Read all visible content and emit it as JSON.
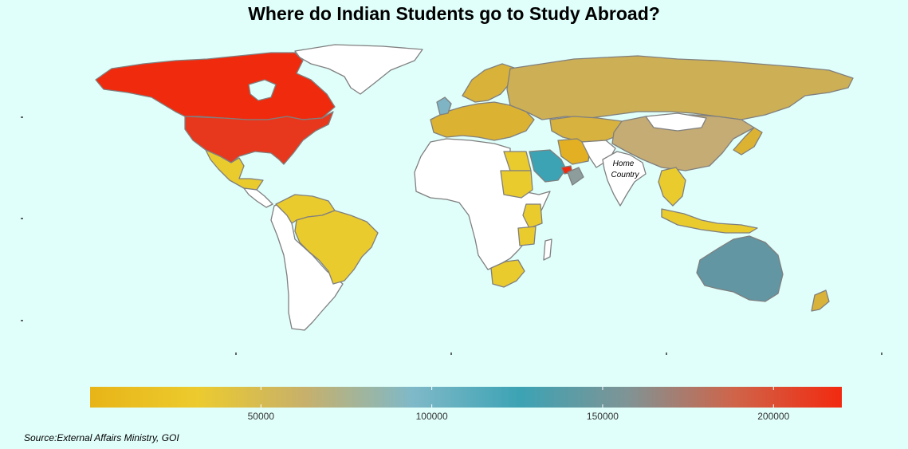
{
  "title": "Where do Indian Students go to Study Abroad?",
  "source": "Source:External Affairs Ministry, GOI",
  "home_label": [
    "Home",
    "Country"
  ],
  "colors": {
    "background": "#e0fffa",
    "no_data": "#ffffff",
    "border": "#7f7f7f"
  },
  "legend": {
    "min": 0,
    "max": 220000,
    "ticks": [
      50000,
      100000,
      150000,
      200000
    ],
    "tick_labels": [
      "50000",
      "100000",
      "150000",
      "200000"
    ],
    "gradient": [
      "#e8b417",
      "#eccb2e",
      "#c7b06b",
      "#7fb9c8",
      "#3ca3b4",
      "#7f9495",
      "#cf6449",
      "#f22a10"
    ]
  },
  "regions": [
    {
      "name": "Canada",
      "value": 215000,
      "color": "#f02a0d"
    },
    {
      "name": "United States",
      "value": 205000,
      "color": "#e7371c"
    },
    {
      "name": "Mexico",
      "value": 1000,
      "color": "#eacb2e"
    },
    {
      "name": "Brazil",
      "value": 1000,
      "color": "#eacb2e"
    },
    {
      "name": "Colombia",
      "value": 1000,
      "color": "#eacb2e"
    },
    {
      "name": "Venezuela",
      "value": 1000,
      "color": "#eacb2e"
    },
    {
      "name": "Russia",
      "value": 15000,
      "color": "#cdaf55"
    },
    {
      "name": "China",
      "value": 23000,
      "color": "#c5ab74"
    },
    {
      "name": "Kazakhstan",
      "value": 5000,
      "color": "#d7b23e"
    },
    {
      "name": "Scandinavia",
      "value": 6000,
      "color": "#d9b23a"
    },
    {
      "name": "United Kingdom",
      "value": 55000,
      "color": "#7eb4c4"
    },
    {
      "name": "Europe",
      "value": 5000,
      "color": "#dcb232"
    },
    {
      "name": "Saudi Arabia",
      "value": 80000,
      "color": "#3ca3b4"
    },
    {
      "name": "United Arab Emirates",
      "value": 220000,
      "color": "#ee2a10"
    },
    {
      "name": "Oman",
      "value": 90000,
      "color": "#8c9d9c"
    },
    {
      "name": "Egypt",
      "value": 1000,
      "color": "#eacb2e"
    },
    {
      "name": "Sudan",
      "value": 1000,
      "color": "#eacb2e"
    },
    {
      "name": "Kenya",
      "value": 1000,
      "color": "#eacb2e"
    },
    {
      "name": "Tanzania",
      "value": 1000,
      "color": "#eacb2e"
    },
    {
      "name": "South Africa",
      "value": 1000,
      "color": "#eacb2e"
    },
    {
      "name": "Iran",
      "value": 3000,
      "color": "#e2b022"
    },
    {
      "name": "Australia",
      "value": 60000,
      "color": "#6296a3"
    },
    {
      "name": "New Zealand",
      "value": 4000,
      "color": "#d9b23a"
    },
    {
      "name": "Japan",
      "value": 2000,
      "color": "#dcb232"
    },
    {
      "name": "Southeast Asia",
      "value": 1000,
      "color": "#eacb2e"
    }
  ]
}
